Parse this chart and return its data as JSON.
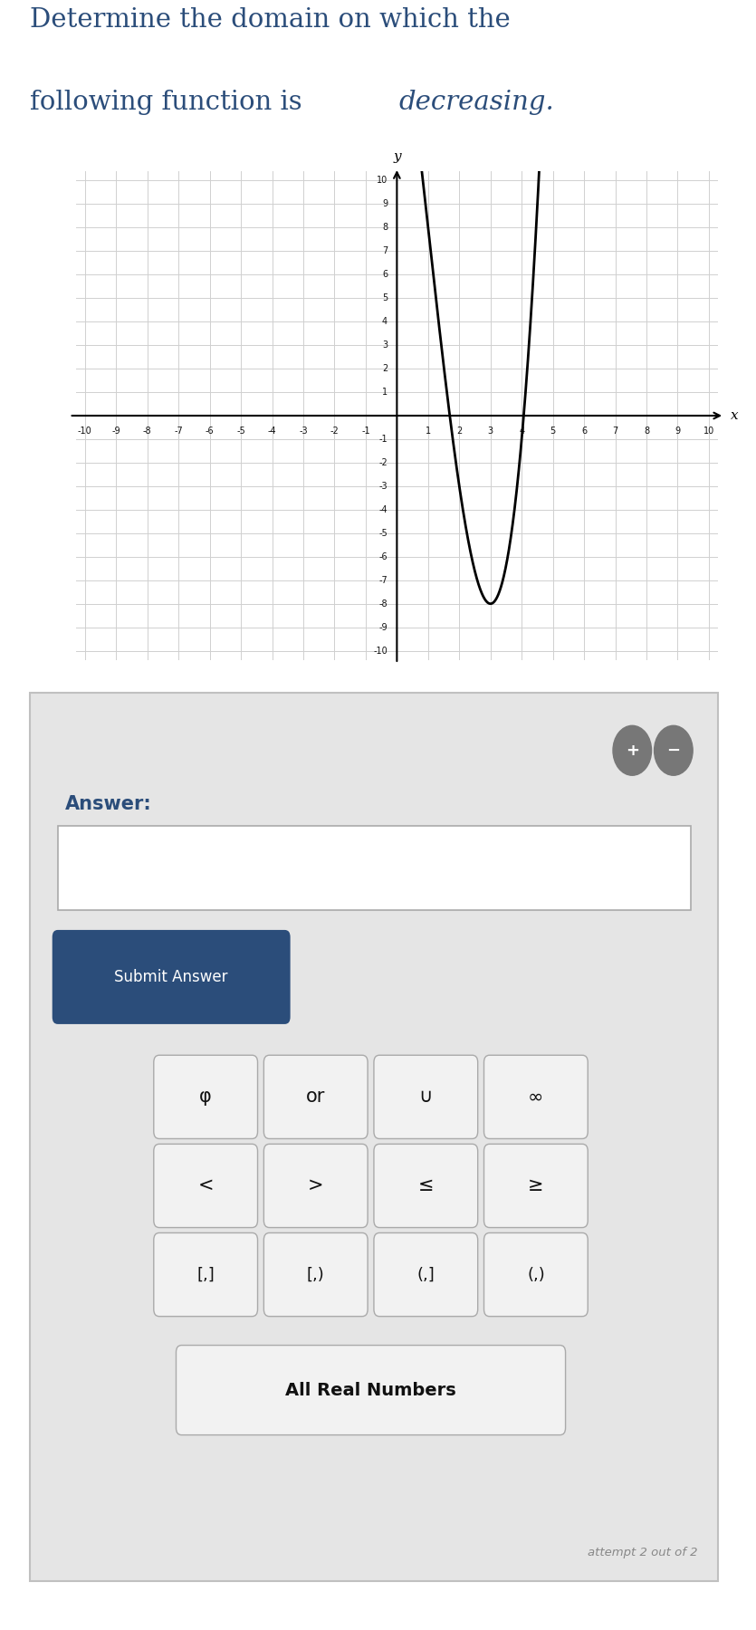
{
  "title_line1": "Determine the domain on which the",
  "title_line2_plain": "following function is ",
  "title_line2_italic": "decreasing.",
  "title_color": "#2b4d7a",
  "title_fontsize": 21,
  "graph_xlim": [
    -10,
    10
  ],
  "graph_ylim": [
    -10,
    10
  ],
  "graph_bg": "#ffffff",
  "grid_color": "#d0d0d0",
  "curve_color": "#000000",
  "curve_lw": 2.0,
  "panel_bg": "#e5e5e5",
  "answer_label_color": "#2b4d7a",
  "submit_btn_bg": "#2b4d7a",
  "submit_btn_text": "Submit Answer",
  "symbol_buttons": [
    "φ",
    "or",
    "∪",
    "∞"
  ],
  "compare_buttons": [
    "<",
    ">",
    "≤",
    "≥"
  ],
  "interval_buttons": [
    "[,]",
    "[,)",
    "(,]",
    "(,)"
  ],
  "all_real_text": "All Real Numbers",
  "attempt_text": "attempt 2 out of 2",
  "curve_func_coeffs": [
    1,
    -3,
    -9,
    19
  ],
  "fig_width": 8.35,
  "fig_height": 18.0
}
